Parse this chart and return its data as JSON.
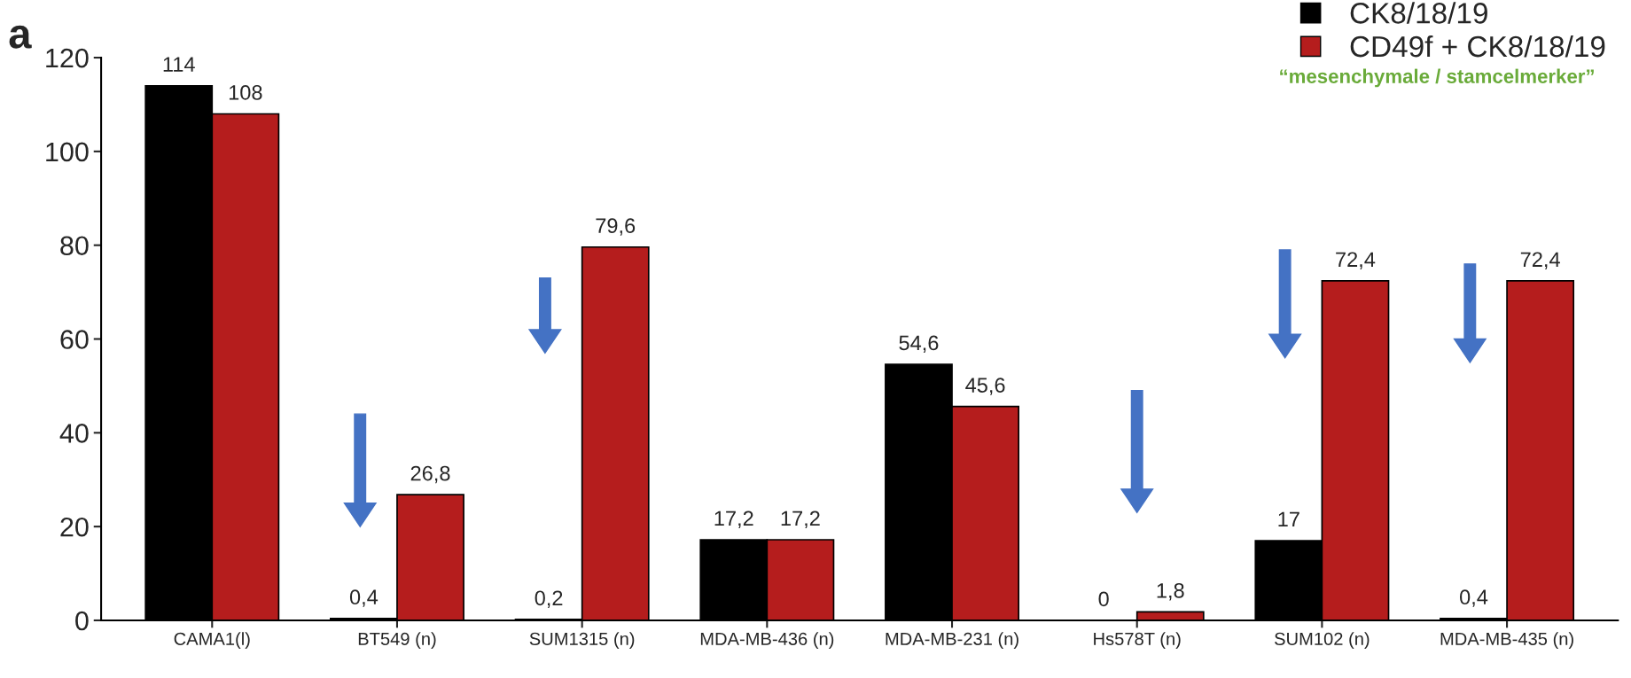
{
  "chart_data": {
    "type": "bar",
    "categories": [
      "CAMA1(l)",
      "BT549 (n)",
      "SUM1315 (n)",
      "MDA-MB-436 (n)",
      "MDA-MB-231 (n)",
      "Hs578T (n)",
      "SUM102 (n)",
      "MDA-MB-435 (n)"
    ],
    "series": [
      {
        "name": "CK8/18/19",
        "color": "#000000",
        "values": [
          114,
          0.4,
          0.2,
          17.2,
          54.6,
          0,
          17,
          0.4
        ],
        "value_labels": [
          "114",
          "0,4",
          "0,2",
          "17,2",
          "54,6",
          "0",
          "17",
          "0,4"
        ]
      },
      {
        "name": "CD49f + CK8/18/19",
        "color": "#b51d1d",
        "values": [
          108,
          26.8,
          79.6,
          17.2,
          45.6,
          1.8,
          72.4,
          72.4
        ],
        "value_labels": [
          "108",
          "26,8",
          "79,6",
          "17,2",
          "45,6",
          "1,8",
          "72,4",
          "72,4"
        ]
      }
    ],
    "ylim": [
      0,
      120
    ],
    "yticks": [
      0,
      20,
      40,
      60,
      80,
      100,
      120
    ],
    "legend": "top right",
    "annotations": [
      "a",
      "“mesenchymale / stamcelmerker”"
    ]
  }
}
